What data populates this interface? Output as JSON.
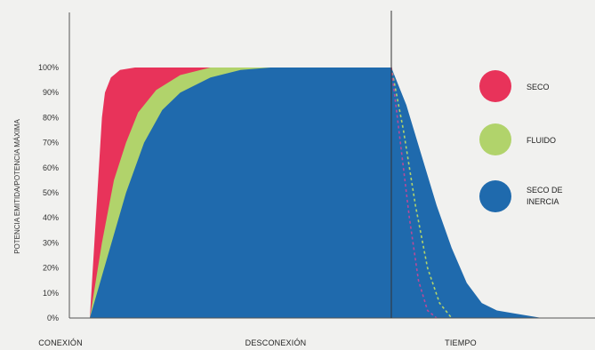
{
  "chart_data": {
    "type": "area",
    "title": "",
    "ylabel": "POTENCIA EMITIDA/POTENCIA MÁXIMA",
    "ylim": [
      0,
      100
    ],
    "y_ticks": [
      "0%",
      "10%",
      "20%",
      "30%",
      "40%",
      "50%",
      "60%",
      "70%",
      "80%",
      "90%",
      "100%"
    ],
    "x_labels": [
      "CONEXIÓN",
      "DESCONEXIÓN",
      "TIEMPO"
    ],
    "legend_position": "right",
    "series": [
      {
        "name": "SECO",
        "color": "#e8335a",
        "rise": [
          [
            0,
            0
          ],
          [
            2,
            40
          ],
          [
            4,
            80
          ],
          [
            5,
            90
          ],
          [
            7,
            96
          ],
          [
            10,
            99
          ],
          [
            15,
            100
          ],
          [
            100,
            100
          ]
        ],
        "decay": [
          [
            100,
            100
          ],
          [
            103,
            70
          ],
          [
            106,
            40
          ],
          [
            109,
            15
          ],
          [
            112,
            3
          ],
          [
            115,
            0
          ]
        ]
      },
      {
        "name": "FLUIDO",
        "color": "#b1d36b",
        "rise": [
          [
            0,
            0
          ],
          [
            4,
            30
          ],
          [
            8,
            55
          ],
          [
            12,
            70
          ],
          [
            16,
            82
          ],
          [
            22,
            91
          ],
          [
            30,
            97
          ],
          [
            40,
            100
          ],
          [
            100,
            100
          ]
        ],
        "decay": [
          [
            100,
            100
          ],
          [
            104,
            75
          ],
          [
            108,
            45
          ],
          [
            112,
            20
          ],
          [
            116,
            6
          ],
          [
            120,
            0
          ]
        ]
      },
      {
        "name": "SECO DE INERCIA",
        "color": "#1f6aad",
        "rise": [
          [
            0,
            0
          ],
          [
            6,
            25
          ],
          [
            12,
            50
          ],
          [
            18,
            70
          ],
          [
            24,
            83
          ],
          [
            30,
            90
          ],
          [
            40,
            96
          ],
          [
            50,
            99
          ],
          [
            60,
            100
          ],
          [
            100,
            100
          ]
        ],
        "decay": [
          [
            100,
            100
          ],
          [
            105,
            85
          ],
          [
            110,
            65
          ],
          [
            115,
            45
          ],
          [
            120,
            28
          ],
          [
            125,
            14
          ],
          [
            130,
            6
          ],
          [
            135,
            3
          ],
          [
            140,
            2
          ],
          [
            150,
            0
          ]
        ]
      }
    ]
  }
}
